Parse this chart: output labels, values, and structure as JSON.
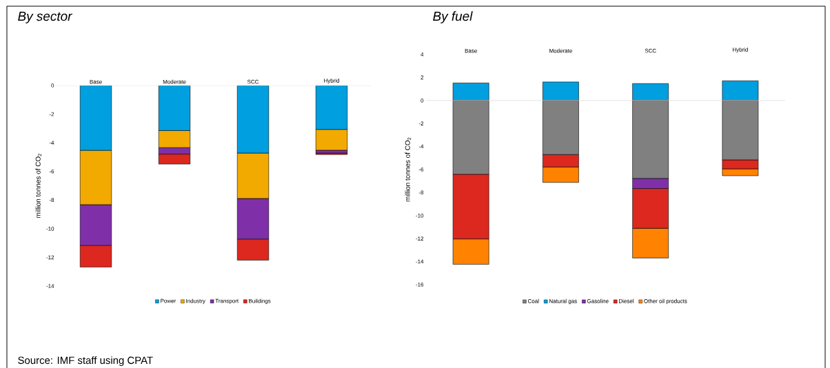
{
  "chart_data": [
    {
      "type": "bar",
      "title": "By sector",
      "stacked": true,
      "legend": "bottom",
      "ylabel": "million tonnes of CO$_{2}$",
      "categories": [
        "Base",
        "Moderate",
        "SCC",
        "Hybrid"
      ],
      "series": [
        {
          "name": "Power",
          "color": "#009fdf",
          "values": [
            -4.53,
            -3.15,
            -4.72,
            -3.07
          ]
        },
        {
          "name": "Industry",
          "color": "#f2a900",
          "values": [
            -3.79,
            -1.19,
            -3.17,
            -1.45
          ]
        },
        {
          "name": "Transport",
          "color": "#7f30a8",
          "values": [
            -2.85,
            -0.45,
            -2.83,
            -0.2
          ]
        },
        {
          "name": "Buildings",
          "color": "#dc281e",
          "values": [
            -1.51,
            -0.7,
            -1.48,
            -0.1
          ]
        }
      ],
      "ylim": [
        -14,
        0
      ],
      "yticks": [
        -14,
        -12,
        -10,
        -8,
        -6,
        -4,
        -2,
        0
      ],
      "annotations": [
        "Source: IMF staff using CPAT"
      ]
    },
    {
      "type": "bar",
      "title": "By fuel",
      "stacked": true,
      "legend": "bottom",
      "ylabel": "million tonnes of CO$_{2}$",
      "categories": [
        "Base",
        "Moderate",
        "SCC",
        "Hybrid"
      ],
      "series": [
        {
          "name": "Coal",
          "color": "#808080",
          "values": [
            -6.41,
            -4.7,
            -6.77,
            -5.16
          ]
        },
        {
          "name": "Natural gas",
          "color": "#009fdf",
          "values": [
            1.52,
            1.61,
            1.47,
            1.71
          ]
        },
        {
          "name": "Gasoline",
          "color": "#7f30a8",
          "values": [
            null,
            null,
            -0.88,
            null
          ]
        },
        {
          "name": "Diesel",
          "color": "#dc281e",
          "values": [
            -5.62,
            -1.08,
            -3.46,
            -0.78
          ]
        },
        {
          "name": "Other oil products",
          "color": "#ff8200",
          "values": [
            -2.21,
            -1.34,
            -2.58,
            -0.6
          ]
        }
      ],
      "ylim": [
        -16,
        4
      ],
      "yticks": [
        -16,
        -14,
        -12,
        -10,
        -8,
        -6,
        -4,
        -2,
        0,
        2,
        4
      ]
    }
  ]
}
